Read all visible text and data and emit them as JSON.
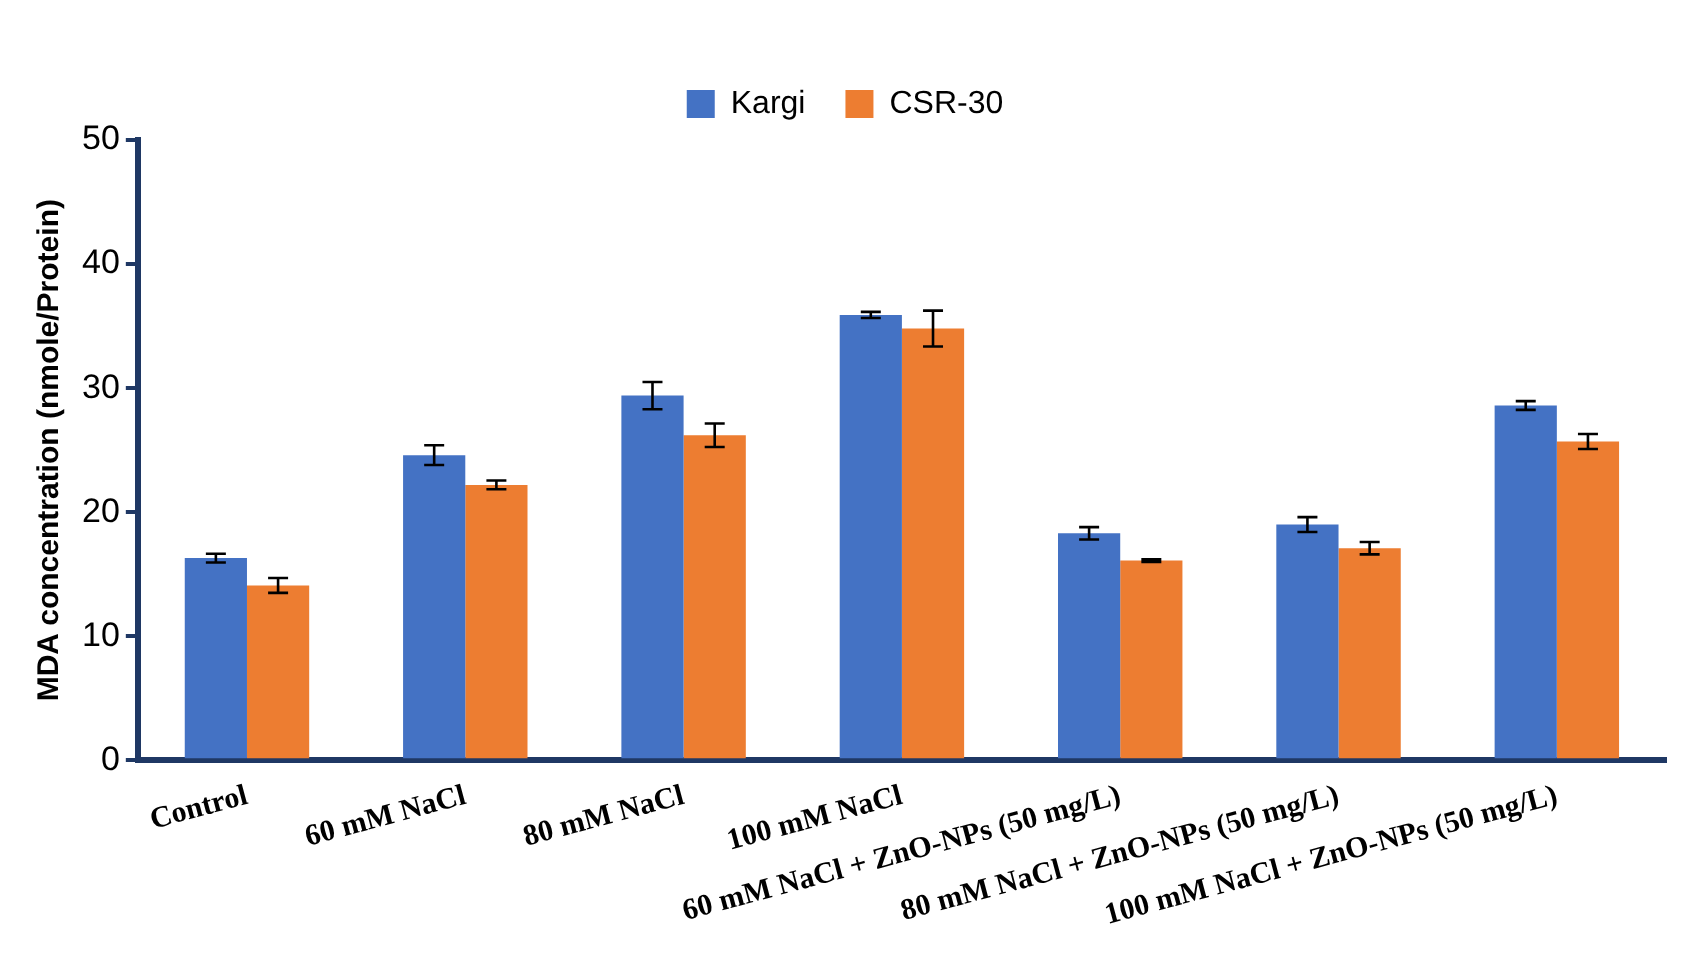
{
  "chart_data": {
    "type": "bar",
    "ylabel": "MDA concentration (nmole/Protein)",
    "categories": [
      "Control",
      "60 mM NaCl",
      "80 mM NaCl",
      "100 mM NaCl",
      "60 mM NaCl + ZnO-NPs (50 mg/L)",
      "80 mM NaCl + ZnO-NPs (50 mg/L)",
      "100 mM NaCl + ZnO-NPs (50 mg/L)"
    ],
    "series": [
      {
        "name": "Kargi",
        "color": "#4472c4",
        "values": [
          16.3,
          24.6,
          29.4,
          35.9,
          18.3,
          19.0,
          28.6
        ],
        "errors": [
          0.35,
          0.8,
          1.1,
          0.25,
          0.5,
          0.6,
          0.35
        ]
      },
      {
        "name": "CSR-30",
        "color": "#ed7d31",
        "values": [
          14.1,
          22.2,
          26.2,
          34.8,
          16.1,
          17.1,
          25.7
        ],
        "errors": [
          0.6,
          0.35,
          0.95,
          1.45,
          0.1,
          0.5,
          0.6
        ]
      }
    ],
    "ylim": [
      0,
      50
    ],
    "yticks": [
      0,
      10,
      20,
      30,
      40,
      50
    ],
    "grid": false,
    "legend": "top right"
  }
}
